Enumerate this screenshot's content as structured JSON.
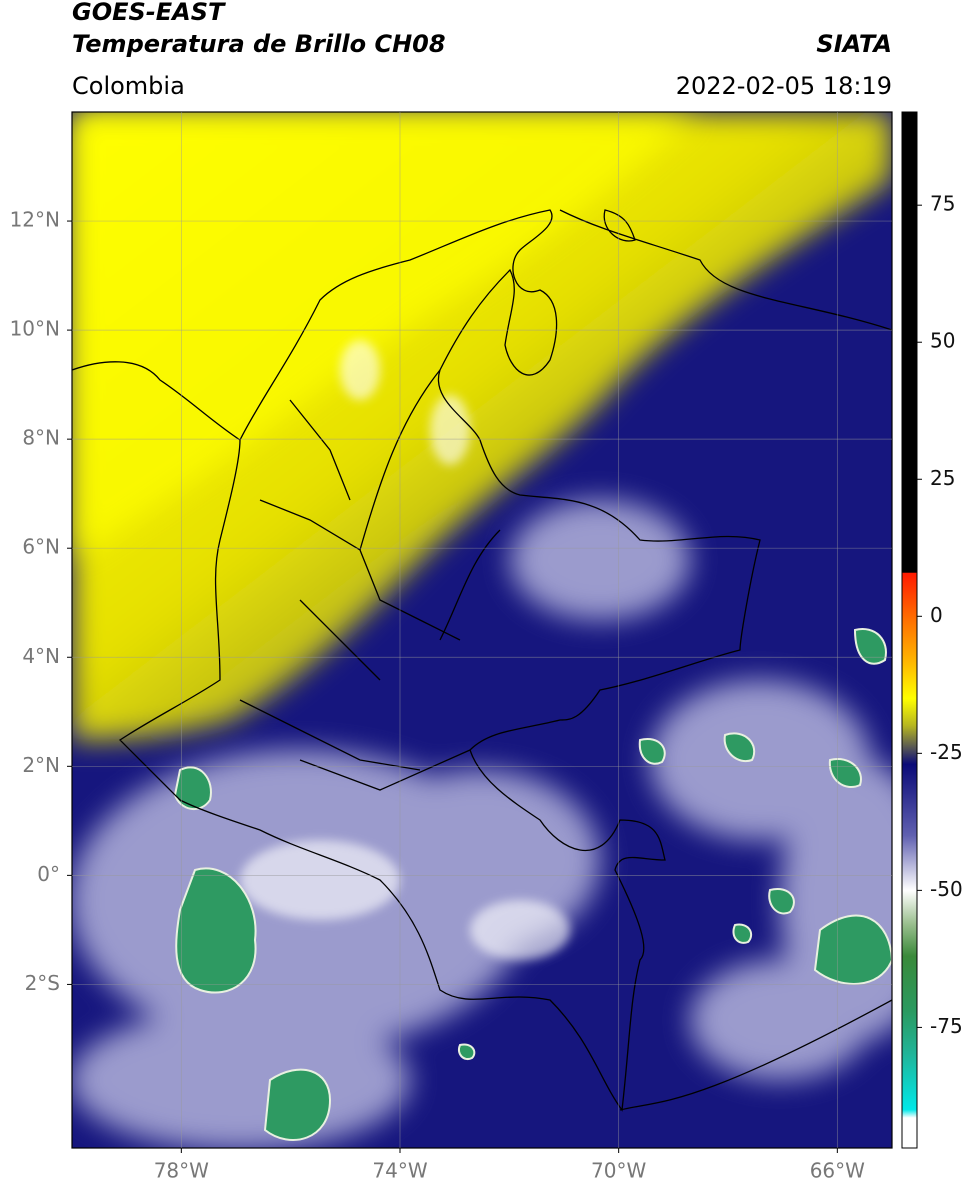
{
  "header": {
    "title": "GOES-EAST",
    "product": "Temperatura de Brillo CH08",
    "region": "Colombia",
    "source": "SIATA",
    "datetime": "2022-02-05 18:19"
  },
  "map": {
    "lonlim": [
      -80,
      -65
    ],
    "latlim": [
      -5,
      14
    ],
    "lon_ticks": [
      {
        "value": -78,
        "label": "78°W"
      },
      {
        "value": -74,
        "label": "74°W"
      },
      {
        "value": -70,
        "label": "70°W"
      },
      {
        "value": -66,
        "label": "66°W"
      }
    ],
    "lat_ticks": [
      {
        "value": 12,
        "label": "12°N"
      },
      {
        "value": 10,
        "label": "10°N"
      },
      {
        "value": 8,
        "label": "8°N"
      },
      {
        "value": 6,
        "label": "6°N"
      },
      {
        "value": 4,
        "label": "4°N"
      },
      {
        "value": 2,
        "label": "2°N"
      },
      {
        "value": 0,
        "label": "0°"
      },
      {
        "value": -2,
        "label": "2°S"
      }
    ],
    "grid": true
  },
  "colorbar": {
    "lim": [
      -97,
      92
    ],
    "ticks": [
      75,
      50,
      25,
      0,
      -25,
      -50,
      -75
    ],
    "colormap": [
      {
        "value": 92,
        "color": "#000000"
      },
      {
        "value": 8,
        "color": "#000000"
      },
      {
        "value": 7.9,
        "color": "#ff1a00"
      },
      {
        "value": 0,
        "color": "#ff6a00"
      },
      {
        "value": -8,
        "color": "#ffb400"
      },
      {
        "value": -15,
        "color": "#ffff00"
      },
      {
        "value": -20,
        "color": "#b5b520"
      },
      {
        "value": -24,
        "color": "#555555"
      },
      {
        "value": -27,
        "color": "#0a0a78"
      },
      {
        "value": -40,
        "color": "#6060b0"
      },
      {
        "value": -50,
        "color": "#ffffff"
      },
      {
        "value": -56,
        "color": "#9cc090"
      },
      {
        "value": -62,
        "color": "#3a8a3a"
      },
      {
        "value": -72,
        "color": "#2a9a60"
      },
      {
        "value": -80,
        "color": "#20b59a"
      },
      {
        "value": -90,
        "color": "#00e8e8"
      },
      {
        "value": -91.5,
        "color": "#ffffff"
      },
      {
        "value": -97,
        "color": "#ffffff"
      }
    ]
  }
}
